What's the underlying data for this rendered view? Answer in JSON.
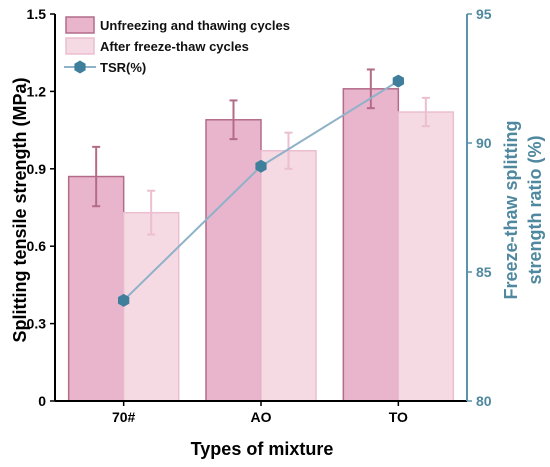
{
  "chart_data": {
    "type": "bar",
    "categories": [
      "70#",
      "AO",
      "TO"
    ],
    "xlabel": "Types of mixture",
    "ylabel": "Splitting tensile strength (MPa)",
    "y2label_line1": "Freeze-thaw splitting",
    "y2label_line2": "strength ratio (%)",
    "ylim": [
      0,
      1.5
    ],
    "y2lim": [
      80,
      95
    ],
    "yticks": [
      "0",
      "0.3",
      "0.6",
      "0.9",
      "1.2",
      "1.5"
    ],
    "y2ticks": [
      "80",
      "85",
      "90",
      "95"
    ],
    "series": [
      {
        "name": "Unfreezing and thawing cycles",
        "kind": "bar",
        "values": [
          0.87,
          1.09,
          1.21
        ],
        "errors": [
          0.115,
          0.075,
          0.075
        ],
        "color": "#e9b5cc",
        "edge": "#b36b88"
      },
      {
        "name": "After freeze-thaw cycles",
        "kind": "bar",
        "values": [
          0.73,
          0.97,
          1.12
        ],
        "errors": [
          0.085,
          0.07,
          0.055
        ],
        "color": "#f5dae4",
        "edge": "#ebbed0"
      },
      {
        "name": "TSR(%)",
        "kind": "line",
        "axis": "right",
        "values": [
          83.9,
          89.1,
          92.4
        ],
        "color": "#8fb2c8",
        "marker_color": "#3f7f9b"
      }
    ],
    "legend": "top-left",
    "grid": false
  }
}
